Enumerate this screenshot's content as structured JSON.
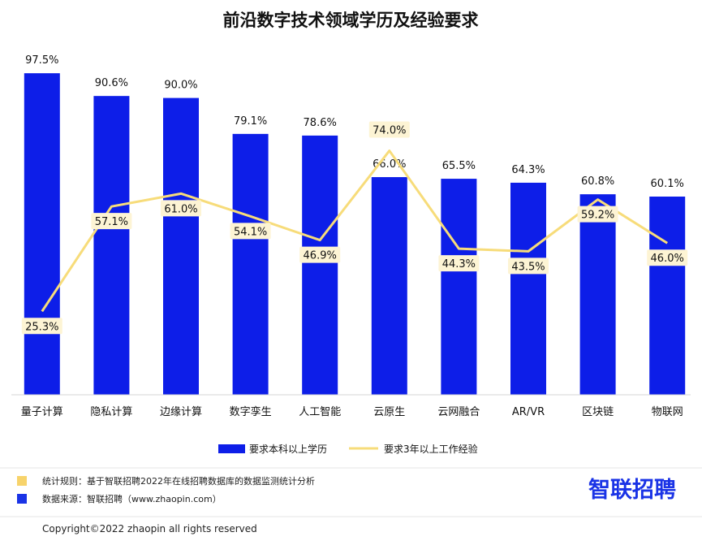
{
  "chart_data": {
    "type": "bar",
    "title": "前沿数字技术领域学历及经验要求",
    "categories": [
      "量子计算",
      "隐私计算",
      "边缘计算",
      "数字孪生",
      "人工智能",
      "云原生",
      "云网融合",
      "AR/VR",
      "区块链",
      "物联网"
    ],
    "series": [
      {
        "name": "要求本科以上学历",
        "type": "bar",
        "color": "#0d1ee8",
        "values": [
          97.5,
          90.6,
          90.0,
          79.1,
          78.6,
          66.0,
          65.5,
          64.3,
          60.8,
          60.1
        ],
        "labels": [
          "97.5%",
          "90.6%",
          "90.0%",
          "79.1%",
          "78.6%",
          "66.0%",
          "65.5%",
          "64.3%",
          "60.8%",
          "60.1%"
        ]
      },
      {
        "name": "要求3年以上工作经验",
        "type": "line",
        "color": "#f7dc7a",
        "values": [
          25.3,
          57.1,
          61.0,
          54.1,
          46.9,
          74.0,
          44.3,
          43.5,
          59.2,
          46.0
        ],
        "labels": [
          "25.3%",
          "57.1%",
          "61.0%",
          "54.1%",
          "46.9%",
          "74.0%",
          "44.3%",
          "43.5%",
          "59.2%",
          "46.0%"
        ]
      }
    ],
    "ylim": [
      0,
      100
    ],
    "grid": false,
    "legend_position": "bottom-center"
  },
  "footer": {
    "note_rule": "统计规则：基于智联招聘2022年在线招聘数据库的数据监测统计分析",
    "note_source": "数据来源：智联招聘（www.zhaopin.com）",
    "note_rule_color": "#f7d36b",
    "note_source_color": "#1a33e6",
    "brand": "智联招聘",
    "copyright": "Copyright©2022 zhaopin all rights reserved"
  }
}
